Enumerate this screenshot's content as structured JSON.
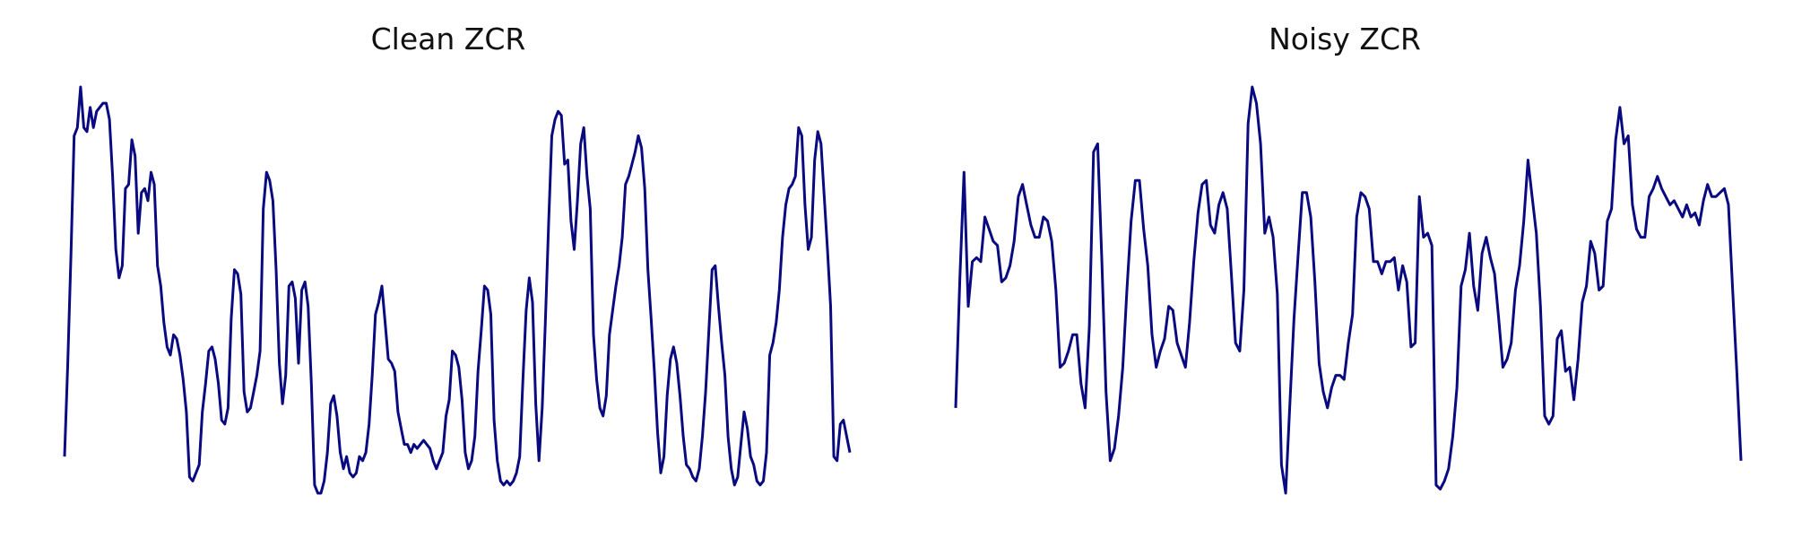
{
  "chart_data": [
    {
      "type": "line",
      "title": "Clean ZCR",
      "xlabel": "",
      "ylabel": "",
      "grid": false,
      "axes_visible": false,
      "color": "#0a0a80",
      "ylim": [
        0,
        1
      ],
      "values": [
        0.09,
        0.32,
        0.59,
        0.88,
        0.9,
        1.0,
        0.9,
        0.89,
        0.95,
        0.9,
        0.94,
        0.95,
        0.96,
        0.96,
        0.92,
        0.78,
        0.6,
        0.53,
        0.56,
        0.75,
        0.76,
        0.87,
        0.83,
        0.64,
        0.74,
        0.75,
        0.72,
        0.79,
        0.76,
        0.56,
        0.51,
        0.42,
        0.36,
        0.34,
        0.39,
        0.38,
        0.34,
        0.28,
        0.2,
        0.04,
        0.03,
        0.05,
        0.07,
        0.2,
        0.27,
        0.35,
        0.36,
        0.33,
        0.27,
        0.18,
        0.17,
        0.21,
        0.43,
        0.55,
        0.54,
        0.49,
        0.25,
        0.2,
        0.21,
        0.25,
        0.29,
        0.35,
        0.7,
        0.79,
        0.77,
        0.72,
        0.55,
        0.32,
        0.22,
        0.29,
        0.51,
        0.52,
        0.48,
        0.32,
        0.5,
        0.52,
        0.46,
        0.27,
        0.02,
        0.0,
        0.0,
        0.03,
        0.1,
        0.22,
        0.24,
        0.19,
        0.1,
        0.06,
        0.09,
        0.05,
        0.04,
        0.05,
        0.09,
        0.08,
        0.1,
        0.17,
        0.29,
        0.44,
        0.47,
        0.51,
        0.42,
        0.33,
        0.32,
        0.3,
        0.2,
        0.16,
        0.12,
        0.12,
        0.1,
        0.12,
        0.11,
        0.12,
        0.13,
        0.12,
        0.11,
        0.08,
        0.06,
        0.08,
        0.1,
        0.19,
        0.23,
        0.35,
        0.34,
        0.31,
        0.23,
        0.1,
        0.06,
        0.08,
        0.14,
        0.3,
        0.4,
        0.51,
        0.5,
        0.44,
        0.18,
        0.08,
        0.03,
        0.02,
        0.03,
        0.02,
        0.03,
        0.05,
        0.09,
        0.28,
        0.45,
        0.53,
        0.47,
        0.22,
        0.08,
        0.21,
        0.42,
        0.66,
        0.88,
        0.92,
        0.94,
        0.93,
        0.81,
        0.82,
        0.67,
        0.6,
        0.72,
        0.86,
        0.9,
        0.78,
        0.7,
        0.39,
        0.28,
        0.21,
        0.19,
        0.24,
        0.39,
        0.45,
        0.51,
        0.56,
        0.63,
        0.76,
        0.78,
        0.81,
        0.84,
        0.88,
        0.85,
        0.75,
        0.55,
        0.43,
        0.3,
        0.15,
        0.05,
        0.09,
        0.24,
        0.33,
        0.36,
        0.32,
        0.24,
        0.14,
        0.07,
        0.06,
        0.04,
        0.03,
        0.06,
        0.14,
        0.25,
        0.4,
        0.55,
        0.56,
        0.46,
        0.37,
        0.29,
        0.14,
        0.06,
        0.02,
        0.04,
        0.12,
        0.2,
        0.16,
        0.09,
        0.07,
        0.03,
        0.02,
        0.03,
        0.1,
        0.34,
        0.37,
        0.42,
        0.5,
        0.63,
        0.71,
        0.75,
        0.76,
        0.78,
        0.9,
        0.88,
        0.71,
        0.6,
        0.63,
        0.82,
        0.89,
        0.86,
        0.73,
        0.6,
        0.46,
        0.09,
        0.08,
        0.17,
        0.18,
        0.14,
        0.1
      ]
    },
    {
      "type": "line",
      "title": "Noisy ZCR",
      "xlabel": "",
      "ylabel": "",
      "grid": false,
      "axes_visible": false,
      "color": "#0a0a80",
      "ylim": [
        0,
        1
      ],
      "values": [
        0.21,
        0.53,
        0.79,
        0.46,
        0.57,
        0.58,
        0.57,
        0.68,
        0.65,
        0.62,
        0.61,
        0.52,
        0.53,
        0.56,
        0.62,
        0.73,
        0.76,
        0.71,
        0.66,
        0.63,
        0.63,
        0.68,
        0.67,
        0.62,
        0.5,
        0.31,
        0.32,
        0.35,
        0.39,
        0.39,
        0.27,
        0.21,
        0.41,
        0.84,
        0.86,
        0.57,
        0.25,
        0.08,
        0.11,
        0.19,
        0.31,
        0.5,
        0.67,
        0.77,
        0.77,
        0.65,
        0.56,
        0.39,
        0.31,
        0.35,
        0.38,
        0.46,
        0.45,
        0.37,
        0.34,
        0.31,
        0.42,
        0.57,
        0.69,
        0.76,
        0.77,
        0.66,
        0.64,
        0.71,
        0.74,
        0.7,
        0.54,
        0.37,
        0.35,
        0.5,
        0.91,
        1.0,
        0.96,
        0.86,
        0.64,
        0.68,
        0.63,
        0.49,
        0.07,
        0.0,
        0.22,
        0.43,
        0.59,
        0.74,
        0.74,
        0.68,
        0.52,
        0.32,
        0.25,
        0.21,
        0.26,
        0.29,
        0.29,
        0.28,
        0.37,
        0.44,
        0.68,
        0.74,
        0.73,
        0.7,
        0.57,
        0.57,
        0.54,
        0.57,
        0.57,
        0.58,
        0.5,
        0.56,
        0.52,
        0.36,
        0.37,
        0.73,
        0.63,
        0.64,
        0.61,
        0.02,
        0.01,
        0.03,
        0.06,
        0.14,
        0.26,
        0.51,
        0.55,
        0.64,
        0.51,
        0.45,
        0.59,
        0.63,
        0.58,
        0.54,
        0.43,
        0.31,
        0.33,
        0.37,
        0.5,
        0.56,
        0.67,
        0.82,
        0.73,
        0.64,
        0.46,
        0.19,
        0.17,
        0.19,
        0.38,
        0.4,
        0.3,
        0.31,
        0.23,
        0.33,
        0.47,
        0.51,
        0.62,
        0.59,
        0.5,
        0.51,
        0.67,
        0.7,
        0.87,
        0.95,
        0.86,
        0.88,
        0.71,
        0.65,
        0.63,
        0.63,
        0.73,
        0.75,
        0.78,
        0.75,
        0.73,
        0.71,
        0.72,
        0.7,
        0.68,
        0.71,
        0.68,
        0.69,
        0.66,
        0.72,
        0.76,
        0.73,
        0.73,
        0.74,
        0.75,
        0.71,
        0.5,
        0.3,
        0.08
      ]
    }
  ]
}
